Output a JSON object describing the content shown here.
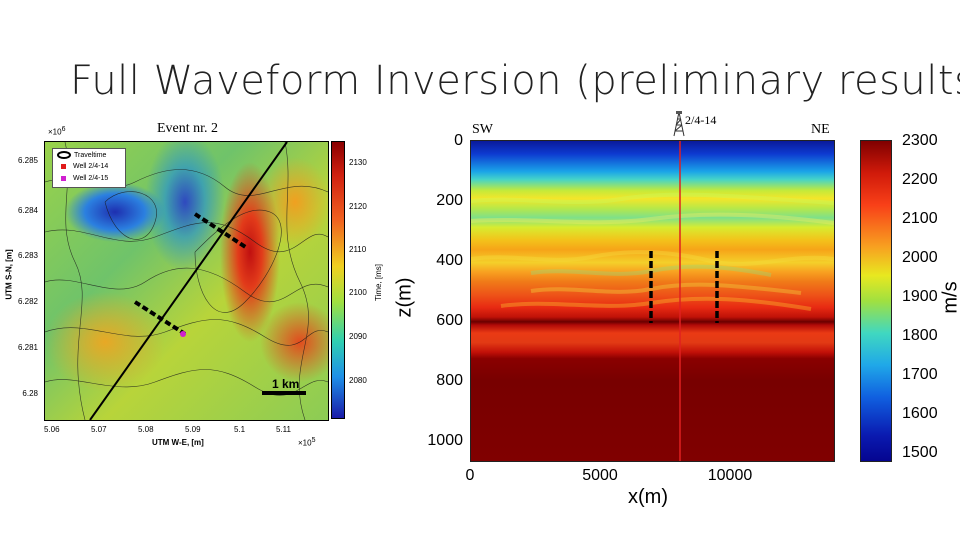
{
  "slide": {
    "title": "Full Waveform Inversion (preliminary results)"
  },
  "left_panel": {
    "event_label": "Event nr. 2",
    "y_exponent": "×10",
    "y_exponent_power": "6",
    "x_exponent": "×10",
    "x_exponent_power": "5",
    "y_ticks": [
      "6.285",
      "6.284",
      "6.283",
      "6.282",
      "6.281",
      "6.28"
    ],
    "x_ticks": [
      "5.06",
      "5.07",
      "5.08",
      "5.09",
      "5.1",
      "5.11"
    ],
    "y_label": "UTM S-N, [m]",
    "x_label": "UTM W-E, [m]",
    "legend": [
      {
        "label": "Traveltime",
        "color": "#000000"
      },
      {
        "label": "Well 2/4-14",
        "color": "#e01a1a"
      },
      {
        "label": "Well 2/4-15",
        "color": "#d020d0"
      }
    ],
    "scale_label": "1 km",
    "colorbar_ticks": [
      "2130",
      "2120",
      "2110",
      "2100",
      "2090",
      "2080"
    ],
    "colorbar_label": "Time, [ms]"
  },
  "right_panel": {
    "label_sw": "SW",
    "label_ne": "NE",
    "well_label": "2/4-14",
    "y_ticks": [
      "0",
      "200",
      "400",
      "600",
      "800",
      "1000"
    ],
    "x_ticks": [
      "0",
      "5000",
      "10000"
    ],
    "y_label": "z(m)",
    "x_label": "x(m)",
    "colorbar_ticks": [
      "2300",
      "2200",
      "2100",
      "2000",
      "1900",
      "1800",
      "1700",
      "1600",
      "1500"
    ],
    "colorbar_unit": "m/s"
  }
}
